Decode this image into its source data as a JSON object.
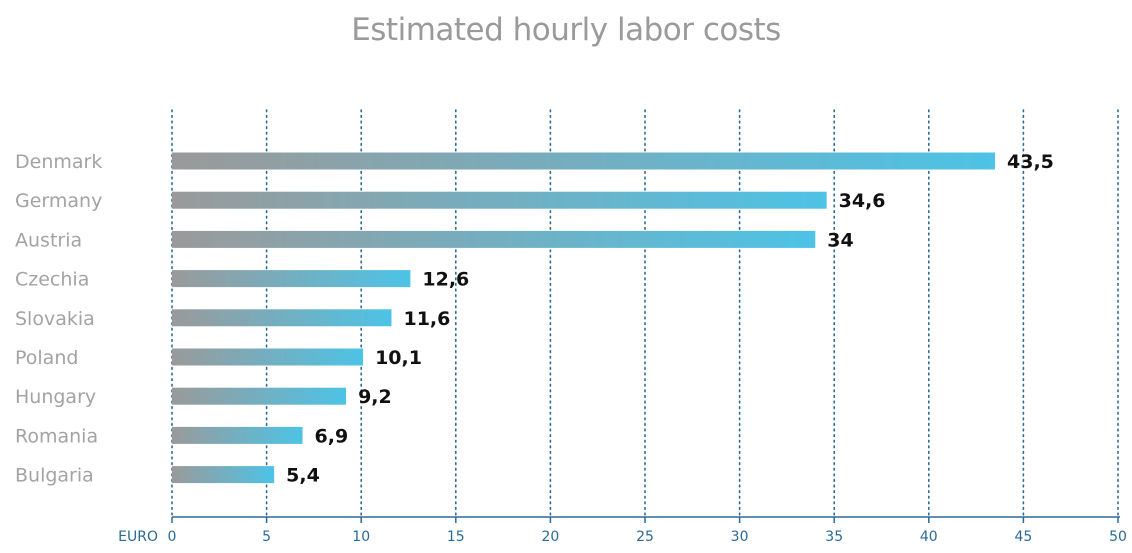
{
  "chart_data": {
    "type": "bar",
    "orientation": "horizontal",
    "title": "Estimated hourly labor costs",
    "xlabel": "EURO",
    "ylabel": "",
    "xlim": [
      0,
      50
    ],
    "ticks": [
      0,
      5,
      10,
      15,
      20,
      25,
      30,
      35,
      40,
      45,
      50
    ],
    "categories": [
      "Denmark",
      "Germany",
      "Austria",
      "Czechia",
      "Slovakia",
      "Poland",
      "Hungary",
      "Romania",
      "Bulgaria"
    ],
    "values": [
      43.5,
      34.6,
      34,
      12.6,
      11.6,
      10.1,
      9.2,
      6.9,
      5.4
    ],
    "value_labels": [
      "43,5",
      "34,6",
      "34",
      "12,6",
      "11,6",
      "10,1",
      "9,2",
      "6,9",
      "5,4"
    ],
    "grid": "vertical dotted",
    "colors": {
      "bar_start": "#9a9a9a",
      "bar_end": "#4dc3e6",
      "grid": "#2b6a96",
      "axis": "#2b6a96",
      "title": "#9a9a9a",
      "category_text": "#a3a3a3",
      "value_text": "#111111"
    }
  }
}
